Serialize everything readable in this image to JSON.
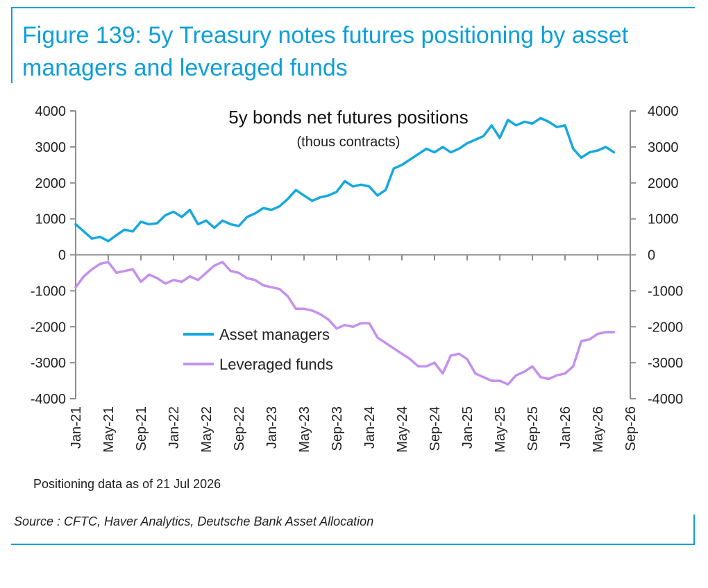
{
  "figure": {
    "title": "Figure 139: 5y Treasury notes futures positioning by asset managers and leveraged funds",
    "note": "Positioning data as of 21 Jul 2026",
    "source": "Source : CFTC, Haver Analytics, Deutsche Bank Asset Allocation"
  },
  "colors": {
    "accent": "#0f9fd8",
    "asset_managers": "#16a8e0",
    "leveraged_funds": "#c490ee",
    "axis": "#8c8c8c"
  },
  "chart_data": {
    "type": "line",
    "title": "5y bonds net futures positions",
    "subtitle": "(thous contracts)",
    "xlabel": "",
    "ylabel": "",
    "ylim": [
      -4000,
      4000
    ],
    "y_ticks_left": [
      "4000",
      "3000",
      "2000",
      "1000",
      "0",
      "-1000",
      "-2000",
      "-3000",
      "-4000"
    ],
    "y_ticks_right": [
      "4000",
      "3000",
      "2000",
      "1000",
      "0",
      "-1000",
      "-2000",
      "-3000",
      "-4000"
    ],
    "x_tick_labels": [
      "Jan-21",
      "May-21",
      "Sep-21",
      "Jan-22",
      "May-22",
      "Sep-22",
      "Jan-23",
      "May-23",
      "Sep-23",
      "Jan-24",
      "May-24",
      "Sep-24",
      "Jan-25",
      "May-25",
      "Sep-25",
      "Jan-26",
      "May-26",
      "Sep-26"
    ],
    "x_range": [
      "2021-01",
      "2026-09"
    ],
    "legend": [
      "Asset managers",
      "Leveraged funds"
    ],
    "legend_position": "bottom-center",
    "grid": false,
    "series": [
      {
        "name": "Asset managers",
        "x": [
          "2021-01",
          "2021-02",
          "2021-03",
          "2021-04",
          "2021-05",
          "2021-06",
          "2021-07",
          "2021-08",
          "2021-09",
          "2021-10",
          "2021-11",
          "2021-12",
          "2022-01",
          "2022-02",
          "2022-03",
          "2022-04",
          "2022-05",
          "2022-06",
          "2022-07",
          "2022-08",
          "2022-09",
          "2022-10",
          "2022-11",
          "2022-12",
          "2023-01",
          "2023-02",
          "2023-03",
          "2023-04",
          "2023-05",
          "2023-06",
          "2023-07",
          "2023-08",
          "2023-09",
          "2023-10",
          "2023-11",
          "2023-12",
          "2024-01",
          "2024-02",
          "2024-03",
          "2024-04",
          "2024-05",
          "2024-06",
          "2024-07",
          "2024-08",
          "2024-09",
          "2024-10",
          "2024-11",
          "2024-12",
          "2025-01",
          "2025-02",
          "2025-03",
          "2025-04",
          "2025-05",
          "2025-06",
          "2025-07",
          "2025-08",
          "2025-09",
          "2025-10",
          "2025-11",
          "2025-12",
          "2026-01",
          "2026-02",
          "2026-03",
          "2026-04",
          "2026-05",
          "2026-06",
          "2026-07"
        ],
        "values": [
          850,
          650,
          450,
          500,
          380,
          550,
          700,
          650,
          920,
          850,
          880,
          1100,
          1200,
          1050,
          1250,
          850,
          950,
          750,
          950,
          850,
          800,
          1050,
          1150,
          1300,
          1250,
          1350,
          1550,
          1800,
          1650,
          1500,
          1600,
          1650,
          1750,
          2050,
          1900,
          1950,
          1900,
          1650,
          1800,
          2400,
          2500,
          2650,
          2800,
          2950,
          2850,
          3000,
          2850,
          2950,
          3100,
          3200,
          3300,
          3600,
          3250,
          3750,
          3600,
          3700,
          3650,
          3800,
          3700,
          3550,
          3600,
          2950,
          2700,
          2850,
          2900,
          3000,
          2850
        ]
      },
      {
        "name": "Leveraged funds",
        "x": [
          "2021-01",
          "2021-02",
          "2021-03",
          "2021-04",
          "2021-05",
          "2021-06",
          "2021-07",
          "2021-08",
          "2021-09",
          "2021-10",
          "2021-11",
          "2021-12",
          "2022-01",
          "2022-02",
          "2022-03",
          "2022-04",
          "2022-05",
          "2022-06",
          "2022-07",
          "2022-08",
          "2022-09",
          "2022-10",
          "2022-11",
          "2022-12",
          "2023-01",
          "2023-02",
          "2023-03",
          "2023-04",
          "2023-05",
          "2023-06",
          "2023-07",
          "2023-08",
          "2023-09",
          "2023-10",
          "2023-11",
          "2023-12",
          "2024-01",
          "2024-02",
          "2024-03",
          "2024-04",
          "2024-05",
          "2024-06",
          "2024-07",
          "2024-08",
          "2024-09",
          "2024-10",
          "2024-11",
          "2024-12",
          "2025-01",
          "2025-02",
          "2025-03",
          "2025-04",
          "2025-05",
          "2025-06",
          "2025-07",
          "2025-08",
          "2025-09",
          "2025-10",
          "2025-11",
          "2025-12",
          "2026-01",
          "2026-02",
          "2026-03",
          "2026-04",
          "2026-05",
          "2026-06",
          "2026-07"
        ],
        "values": [
          -900,
          -600,
          -400,
          -250,
          -200,
          -500,
          -450,
          -400,
          -750,
          -550,
          -650,
          -800,
          -700,
          -750,
          -600,
          -700,
          -500,
          -300,
          -200,
          -450,
          -500,
          -650,
          -700,
          -850,
          -900,
          -950,
          -1150,
          -1500,
          -1500,
          -1550,
          -1650,
          -1800,
          -2050,
          -1950,
          -2000,
          -1900,
          -1900,
          -2300,
          -2450,
          -2600,
          -2750,
          -2900,
          -3100,
          -3100,
          -3000,
          -3300,
          -2800,
          -2750,
          -2900,
          -3300,
          -3400,
          -3500,
          -3500,
          -3600,
          -3350,
          -3250,
          -3100,
          -3400,
          -3450,
          -3350,
          -3300,
          -3100,
          -2400,
          -2350,
          -2200,
          -2150,
          -2150
        ]
      }
    ]
  }
}
